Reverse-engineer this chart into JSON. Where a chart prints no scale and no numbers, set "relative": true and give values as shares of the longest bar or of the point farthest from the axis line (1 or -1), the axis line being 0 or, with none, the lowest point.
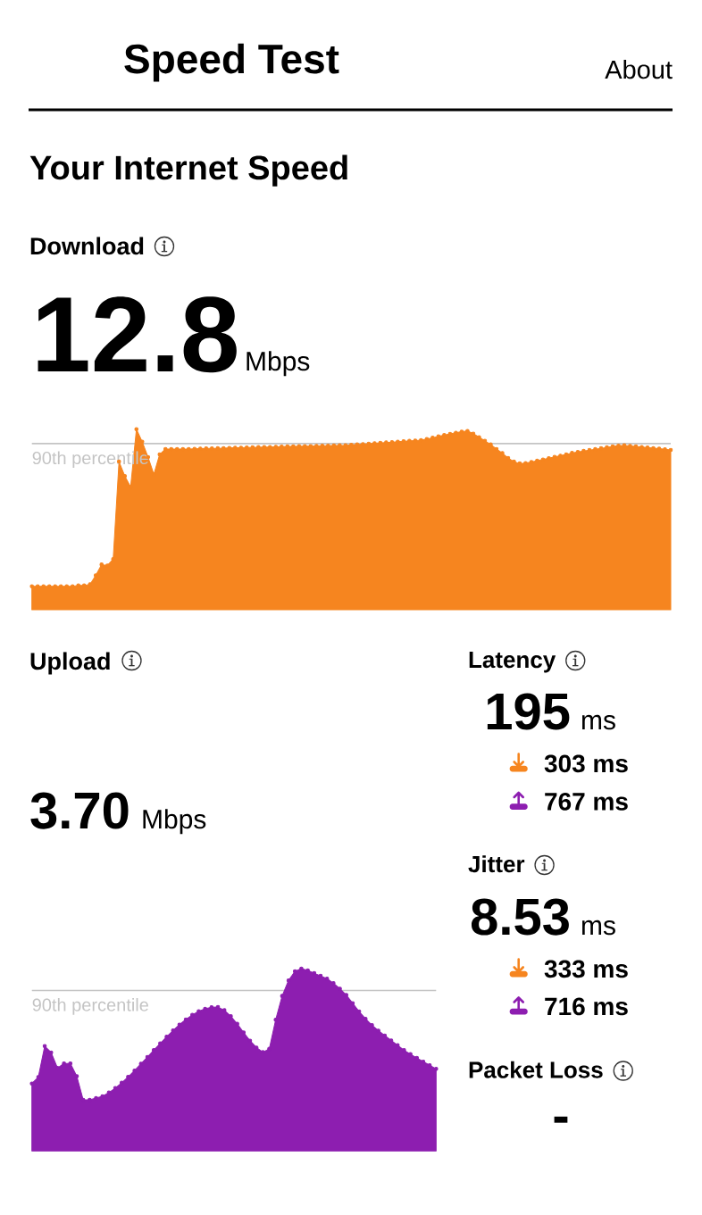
{
  "chart_data": [
    {
      "type": "other",
      "title": "Speed Test",
      "annotations": [
        "About",
        "Your Internet Speed"
      ]
    },
    {
      "type": "area",
      "title": "Download",
      "annotations": [
        "12.8",
        "Mbps"
      ],
      "relative": true,
      "marker": "circle",
      "color": "#f6851f",
      "categories": [
        null,
        null,
        null,
        null,
        null,
        null,
        null,
        null,
        null,
        null,
        null,
        null,
        null,
        null,
        null,
        null,
        null,
        null,
        null,
        null,
        null,
        null,
        null,
        null,
        null,
        null,
        null,
        null,
        null,
        null,
        null,
        null,
        null,
        null,
        null,
        null,
        null,
        null,
        null,
        null,
        null,
        null,
        null,
        null,
        null,
        null,
        null,
        null,
        null,
        null,
        null,
        null,
        null,
        null,
        null,
        null,
        null,
        null,
        null,
        null,
        null,
        null,
        null,
        null,
        null,
        null,
        null,
        null,
        null,
        null,
        null,
        null,
        null,
        null,
        null,
        null,
        null,
        null,
        null,
        null,
        null,
        null,
        null,
        null,
        null,
        null,
        null,
        null,
        null,
        null,
        null,
        null,
        null,
        null,
        null,
        null,
        null,
        null,
        null,
        null,
        null,
        null,
        null,
        null,
        null,
        null,
        null,
        null,
        null,
        null,
        null
      ],
      "values": [
        0.13,
        0.13,
        0.13,
        0.13,
        0.13,
        0.13,
        0.13,
        0.13,
        0.135,
        0.135,
        0.14,
        0.19,
        0.25,
        0.245,
        0.28,
        0.82,
        0.74,
        0.68,
        1,
        0.93,
        0.845,
        0.75,
        0.86,
        0.89,
        0.89,
        0.89,
        0.89,
        0.89,
        0.891,
        0.892,
        0.893,
        0.893,
        0.894,
        0.895,
        0.896,
        0.897,
        0.897,
        0.898,
        0.899,
        0.9,
        0.901,
        0.901,
        0.902,
        0.903,
        0.904,
        0.904,
        0.905,
        0.906,
        0.906,
        0.907,
        0.908,
        0.908,
        0.909,
        0.91,
        0.91,
        0.913,
        0.915,
        0.917,
        0.919,
        0.922,
        0.924,
        0.926,
        0.928,
        0.93,
        0.933,
        0.935,
        0.937,
        0.939,
        0.945,
        0.952,
        0.96,
        0.967,
        0.974,
        0.98,
        0.986,
        0.99,
        0.975,
        0.955,
        0.935,
        0.915,
        0.89,
        0.867,
        0.84,
        0.82,
        0.81,
        0.812,
        0.818,
        0.825,
        0.832,
        0.839,
        0.846,
        0.853,
        0.86,
        0.868,
        0.874,
        0.879,
        0.884,
        0.889,
        0.894,
        0.899,
        0.904,
        0.908,
        0.91,
        0.907,
        0.904,
        0.901,
        0.898,
        0.895,
        0.892,
        0.888,
        0.885
      ],
      "ref_lines": [
        {
          "axis": "y",
          "value": 0.92,
          "label": "90th percentile",
          "color": "#c4c4c4"
        }
      ]
    },
    {
      "type": "area",
      "title": "Upload",
      "annotations": [
        "3.70",
        "Mbps"
      ],
      "relative": true,
      "marker": "circle",
      "color": "#8d1eb0",
      "categories": [
        null,
        null,
        null,
        null,
        null,
        null,
        null,
        null,
        null,
        null,
        null,
        null,
        null,
        null,
        null,
        null,
        null,
        null,
        null,
        null,
        null,
        null,
        null,
        null,
        null,
        null,
        null,
        null,
        null,
        null,
        null,
        null,
        null,
        null,
        null,
        null,
        null,
        null,
        null,
        null,
        null,
        null,
        null,
        null,
        null,
        null,
        null,
        null,
        null,
        null,
        null,
        null,
        null,
        null,
        null,
        null,
        null,
        null,
        null,
        null,
        null,
        null,
        null,
        null
      ],
      "values": [
        0.37,
        0.405,
        0.575,
        0.54,
        0.455,
        0.48,
        0.48,
        0.41,
        0.28,
        0.28,
        0.29,
        0.3,
        0.32,
        0.345,
        0.374,
        0.406,
        0.441,
        0.478,
        0.515,
        0.553,
        0.59,
        0.626,
        0.661,
        0.693,
        0.721,
        0.746,
        0.766,
        0.78,
        0.788,
        0.789,
        0.772,
        0.739,
        0.697,
        0.65,
        0.605,
        0.567,
        0.542,
        0.56,
        0.72,
        0.85,
        0.935,
        0.985,
        1,
        0.99,
        0.975,
        0.96,
        0.945,
        0.92,
        0.89,
        0.855,
        0.81,
        0.765,
        0.725,
        0.69,
        0.66,
        0.633,
        0.606,
        0.58,
        0.553,
        0.531,
        0.51,
        0.49,
        0.47,
        0.45
      ],
      "ref_lines": [
        {
          "axis": "y",
          "value": 0.88,
          "label": "90th percentile",
          "color": "#c4c4c4"
        }
      ]
    },
    {
      "type": "other",
      "title": "Latency",
      "annotations": [
        "195",
        "ms",
        "303 ms",
        "767 ms"
      ]
    },
    {
      "type": "other",
      "title": "Jitter",
      "annotations": [
        "8.53",
        "ms",
        "333 ms",
        "716 ms"
      ]
    },
    {
      "type": "other",
      "title": "Packet Loss",
      "annotations": [
        "-"
      ]
    }
  ]
}
